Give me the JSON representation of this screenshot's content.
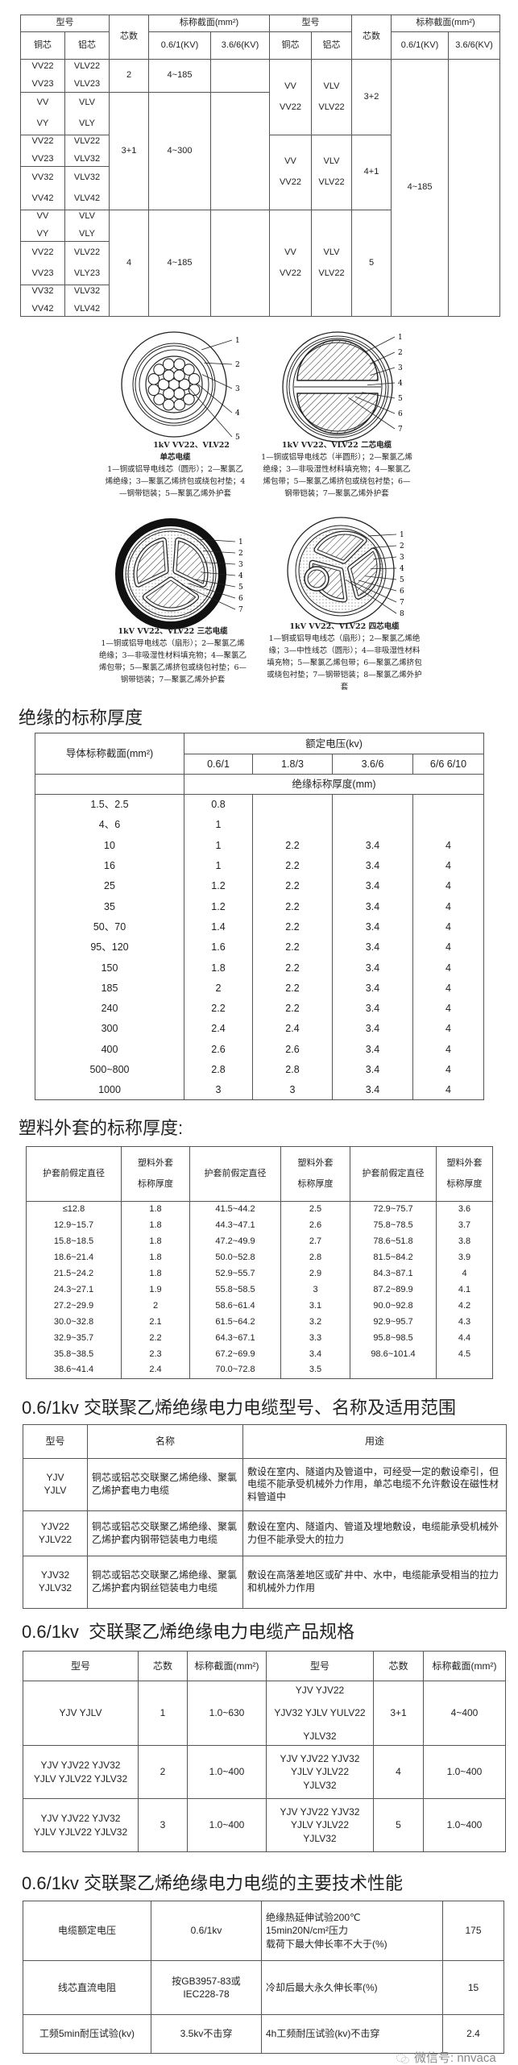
{
  "table1": {
    "header": {
      "model": "型号",
      "cores": "芯数",
      "section": "标称截面(mm²)",
      "copper": "铜芯",
      "aluminum": "铝芯",
      "v1": "0.6/1(KV)",
      "v2": "3.6/6(KV)"
    },
    "left_rows": [
      {
        "cu": [
          "VV22",
          "VV23"
        ],
        "al": [
          "VLV22",
          "VLV23"
        ]
      },
      {
        "cu": [
          "VV",
          "VY"
        ],
        "al": [
          "VLV",
          "VLY"
        ]
      },
      {
        "cu": [
          "VV22",
          "VV23"
        ],
        "al": [
          "VLV22",
          "VLV32"
        ]
      },
      {
        "cu": [
          "VV32",
          "VV42"
        ],
        "al": [
          "VLV32",
          "VLV42"
        ]
      },
      {
        "cu": [
          "VV",
          "VY"
        ],
        "al": [
          "VLV",
          "VLY"
        ]
      },
      {
        "cu": [
          "VV22",
          "VV23"
        ],
        "al": [
          "VLV22",
          "VLY23"
        ]
      },
      {
        "cu": [
          "VV32",
          "VV42"
        ],
        "al": [
          "VLV32",
          "VLV42"
        ]
      }
    ],
    "left_groups": [
      {
        "cores": "2",
        "v1": "4~185",
        "v2": ""
      },
      {
        "cores": "3+1",
        "v1": "4~300",
        "v2": ""
      },
      {
        "cores": "4",
        "v1": "4~185",
        "v2": ""
      }
    ],
    "right_groups": [
      {
        "cu": [
          "VV",
          "VV22"
        ],
        "al": [
          "VLV",
          "VLV22"
        ],
        "cores": "3+2"
      },
      {
        "cu": [
          "VV",
          "VV22"
        ],
        "al": [
          "VLV",
          "VLV22"
        ],
        "cores": "4+1"
      },
      {
        "cu": [
          "VV",
          "VV22"
        ],
        "al": [
          "VLV",
          "VLV22"
        ],
        "cores": "5"
      }
    ],
    "right_v1": "4~185",
    "right_v2": ""
  },
  "diagrams": [
    {
      "title": "1kV VV22、VLV22",
      "subtitle": "单芯电缆",
      "desc": "1—铜或铝导电线芯（圆形）；2—聚氯乙烯绝缘；3—聚氯乙烯挤包或绕包衬垫；4—钢带铠装；5—聚氯乙烯外护套",
      "callouts": [
        "1",
        "2",
        "3",
        "4",
        "5"
      ]
    },
    {
      "title": "1kV VV22、VLV22 二芯电缆",
      "subtitle": "",
      "desc": "1—铜或铝导电线芯（半圆形）；2—聚氯乙烯绝缘；3—非吸湿性材料填充物；4—聚氯乙烯包带；5—聚氯乙烯挤包或绕包衬垫；6—钢带铠装；7—聚氯乙烯外护套",
      "callouts": [
        "1",
        "2",
        "3",
        "4",
        "5",
        "6",
        "7"
      ]
    },
    {
      "title": "1kV VV22、VLV22 三芯电缆",
      "subtitle": "",
      "desc": "1—铜或铝导电线芯（扇形）；2—聚氯乙烯绝缘；3—非吸湿性材料填充物；4—聚氯乙烯包带；5—聚氯乙烯挤包或绕包衬垫；6—钢带铠装；7—聚氯乙烯外护套",
      "callouts": [
        "1",
        "2",
        "3",
        "4",
        "5",
        "6",
        "7"
      ]
    },
    {
      "title": "1kV VV22、VLV22 四芯电缆",
      "subtitle": "",
      "desc": "1—铜或铝导电线芯（扇形）；2—聚氯乙烯绝缘；3—中性线芯（圆形）；4—非吸湿性材料填充物；5—聚氯乙烯包带；6—聚氯乙烯挤包或绕包衬垫；7—钢带铠装；8—聚氯乙烯外护套",
      "callouts": [
        "1",
        "2",
        "3",
        "4",
        "5",
        "6",
        "7",
        "8"
      ]
    }
  ],
  "insulation": {
    "heading": "绝缘的标称厚度",
    "col0": "导体标称截面(mm²)",
    "rated": "额定电压(kv)",
    "voltages": [
      "0.6/1",
      "1.8/3",
      "3.6/6",
      "6/6 6/10"
    ],
    "sub": "绝缘标称厚度(mm)",
    "rows": [
      [
        "1.5、2.5",
        "0.8",
        "",
        "",
        ""
      ],
      [
        "4、6",
        "1",
        "",
        "",
        ""
      ],
      [
        "10",
        "1",
        "2.2",
        "3.4",
        "4"
      ],
      [
        "16",
        "1",
        "2.2",
        "3.4",
        "4"
      ],
      [
        "25",
        "1.2",
        "2.2",
        "3.4",
        "4"
      ],
      [
        "35",
        "1.2",
        "2.2",
        "3.4",
        "4"
      ],
      [
        "50、70",
        "1.4",
        "2.2",
        "3.4",
        "4"
      ],
      [
        "95、120",
        "1.6",
        "2.2",
        "3.4",
        "4"
      ],
      [
        "150",
        "1.8",
        "2.2",
        "3.4",
        "4"
      ],
      [
        "185",
        "2",
        "2.2",
        "3.4",
        "4"
      ],
      [
        "240",
        "2.2",
        "2.2",
        "3.4",
        "4"
      ],
      [
        "300",
        "2.4",
        "2.4",
        "3.4",
        "4"
      ],
      [
        "400",
        "2.6",
        "2.6",
        "3.4",
        "4"
      ],
      [
        "500~800",
        "2.8",
        "2.8",
        "3.4",
        "4"
      ],
      [
        "1000",
        "3",
        "3",
        "3.4",
        "4"
      ]
    ]
  },
  "sheath": {
    "heading": "塑料外套的标称厚度:",
    "h_dia": "护套前假定直径",
    "h_thk": [
      "塑料外套",
      "标称厚度"
    ],
    "rows": [
      [
        "≤12.8",
        "1.8",
        "41.5~44.2",
        "2.5",
        "72.9~75.7",
        "3.6"
      ],
      [
        "12.9~15.7",
        "1.8",
        "44.3~47.1",
        "2.6",
        "75.8~78.5",
        "3.7"
      ],
      [
        "15.8~18.5",
        "1.8",
        "47.2~49.9",
        "2.7",
        "78.6~51.8",
        "3.8"
      ],
      [
        "18.6~21.4",
        "1.8",
        "50.0~52.8",
        "2.8",
        "81.5~84.2",
        "3.9"
      ],
      [
        "21.5~24.2",
        "1.8",
        "52.9~55.7",
        "2.9",
        "84.3~87.1",
        "4"
      ],
      [
        "24.3~27.1",
        "1.9",
        "55.8~58.5",
        "3",
        "87.2~89.9",
        "4.1"
      ],
      [
        "27.2~29.9",
        "2",
        "58.6~61.4",
        "3.1",
        "90.0~92.8",
        "4.2"
      ],
      [
        "30.0~32.8",
        "2.1",
        "61.5~64.2",
        "3.2",
        "92.9~95.7",
        "4.3"
      ],
      [
        "32.9~35.7",
        "2.2",
        "64.3~67.1",
        "3.3",
        "95.8~98.5",
        "4.4"
      ],
      [
        "35.8~38.5",
        "2.3",
        "67.2~69.9",
        "3.4",
        "98.6~101.4",
        "4.5"
      ],
      [
        "38.6~41.4",
        "2.4",
        "70.0~72.8",
        "3.5",
        "",
        ""
      ]
    ]
  },
  "scope": {
    "heading": "0.6/1kv 交联聚乙烯绝缘电力电缆型号、名称及适用范围",
    "headers": [
      "型号",
      "名称",
      "用途"
    ],
    "rows": [
      {
        "model": [
          "YJV",
          "YJLV"
        ],
        "name": "铜芯或铝芯交联聚乙烯绝缘、聚氯乙烯护套电力电缆",
        "use": "敷设在室内、隧道内及管道中，可经受一定的敷设牵引，但电缆不能承受机械外力作用，单芯电缆不允许敷设在磁性材料管道中"
      },
      {
        "model": [
          "YJV22",
          "YJLV22"
        ],
        "name": "铜芯或铝芯交联聚乙烯绝缘、聚氯乙烯护套内钢带铠装电力电缆",
        "use": "敷设在室内、隧道内、管道及埋地敷设，电缆能承受机械外力但不能承受大的拉力"
      },
      {
        "model": [
          "YJV32",
          "YJLV32"
        ],
        "name": "铜芯或铝芯交联聚乙烯绝缘、聚氯乙烯护套内钢丝铠装电力电缆",
        "use": "敷设在高落差地区或矿井中、水中，电缆能承受相当的拉力和机械外力作用"
      }
    ]
  },
  "spec": {
    "heading": "0.6/1kv  交联聚乙烯绝缘电力电缆产品规格",
    "headers": [
      "型号",
      "芯数",
      "标称截面(mm²)",
      "型号",
      "芯数",
      "标称截面(mm²)"
    ],
    "rows": [
      {
        "m1": [
          "YJV YJLV"
        ],
        "c1": "1",
        "s1": "1.0~630",
        "m2": [
          "YJV YJV22",
          "YJV32 YJLV YULV22",
          "YJLV32"
        ],
        "c2": "3+1",
        "s2": "4~400"
      },
      {
        "m1": [
          "YJV YJV22 YJV32",
          "YJLV YJLV22 YJLV32"
        ],
        "c1": "2",
        "s1": "1.0~400",
        "m2": [
          "YJV YJV22 YJV32",
          "YJLV YJLV22",
          "YJLV32"
        ],
        "c2": "4",
        "s2": "1.0~400"
      },
      {
        "m1": [
          "YJV YJV22 YJV32",
          "YJLV YJLV22 YJLV32"
        ],
        "c1": "3",
        "s1": "1.0~400",
        "m2": [
          "YJV YJV22 YJV32",
          "YJLV YJLV22",
          "YJLV32"
        ],
        "c2": "5",
        "s2": "1.0~400"
      }
    ]
  },
  "performance": {
    "heading": "0.6/1kv 交联聚乙烯绝缘电力电缆的主要技术性能",
    "rows": [
      {
        "a": [
          "电缆额定电压"
        ],
        "b": [
          "0.6/1kv"
        ],
        "c": [
          "绝缘热延伸试验200℃",
          "15min20N/cm²压力",
          "载荷下最大伸长率不大于(%)"
        ],
        "d": "175"
      },
      {
        "a": [
          "线芯直流电阻"
        ],
        "b": [
          "按GB3957-83或",
          "IEC228-78"
        ],
        "c": [
          "冷却后最大永久伸长率(%)"
        ],
        "d": "15"
      },
      {
        "a": [
          "工频5min耐压试验(kv)"
        ],
        "b": [
          "3.5kv不击穿"
        ],
        "c": [
          "4h工频耐压试验(kv)不击穿"
        ],
        "d": "2.4"
      }
    ]
  },
  "watermark": {
    "text": "微信号: nnvaca",
    "icon": "wechat-icon"
  }
}
